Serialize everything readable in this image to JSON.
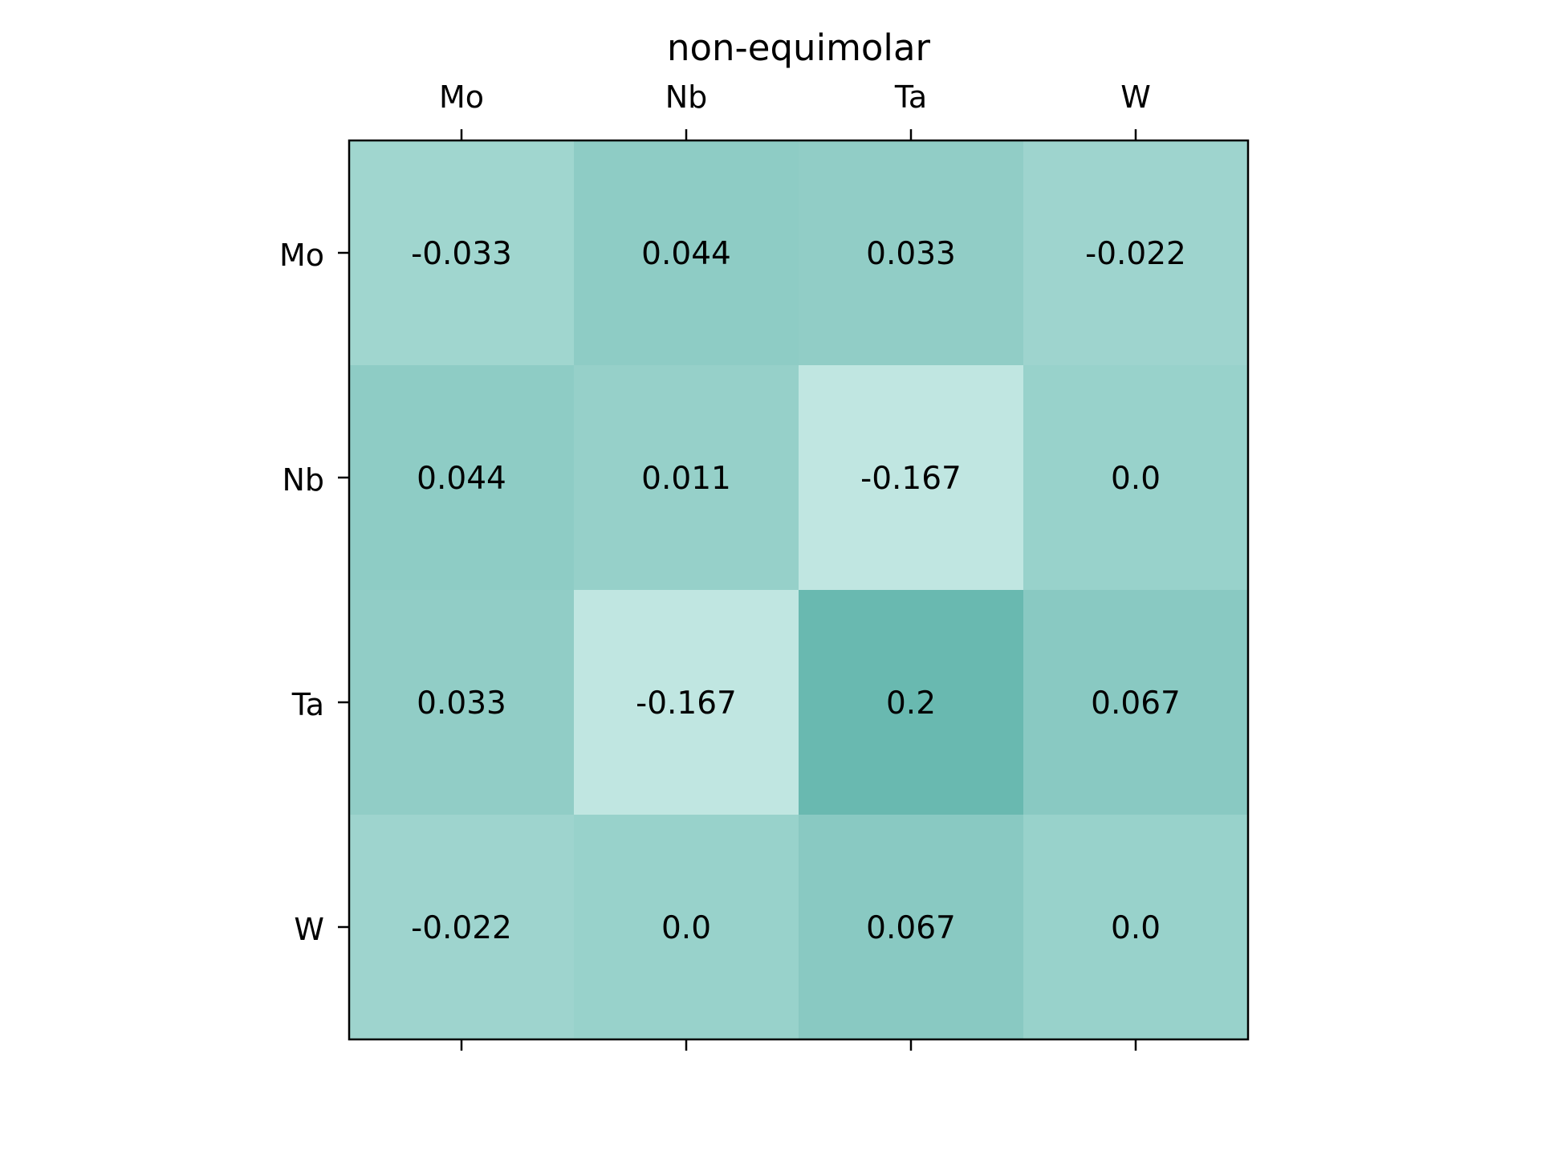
{
  "chart_data": {
    "type": "heatmap",
    "title": "non-equimolar",
    "x_categories": [
      "Mo",
      "Nb",
      "Ta",
      "W"
    ],
    "y_categories": [
      "Mo",
      "Nb",
      "Ta",
      "W"
    ],
    "values": [
      [
        -0.033,
        0.044,
        0.033,
        -0.022
      ],
      [
        0.044,
        0.011,
        -0.167,
        0.0
      ],
      [
        0.033,
        -0.167,
        0.2,
        0.067
      ],
      [
        -0.022,
        0.0,
        0.067,
        0.0
      ]
    ],
    "cell_labels": [
      [
        "-0.033",
        "0.044",
        "0.033",
        "-0.022"
      ],
      [
        "0.044",
        "0.011",
        "-0.167",
        "0.0"
      ],
      [
        "0.033",
        "-0.167",
        "0.2",
        "0.067"
      ],
      [
        "-0.022",
        "0.0",
        "0.067",
        "0.0"
      ]
    ],
    "color_range": [
      -0.167,
      0.2
    ],
    "colors": {
      "low": "#c0e6e1",
      "high": "#69b9b0",
      "frame": "#000000",
      "text": "#000000"
    },
    "x_tick_position": "top",
    "grid": false,
    "legend": false
  }
}
